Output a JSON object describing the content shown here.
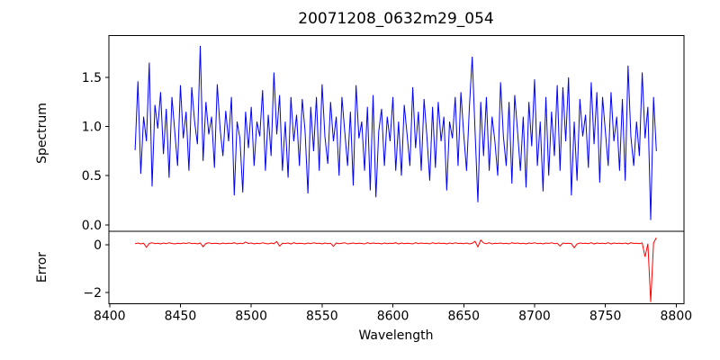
{
  "chart_data": {
    "type": "line",
    "title": "20071208_0632m29_054",
    "xlabel": "Wavelength",
    "xlim": [
      8399.5,
      8805.5
    ],
    "xticks": [
      8400,
      8450,
      8500,
      8550,
      8600,
      8650,
      8700,
      8750,
      8800
    ],
    "xtick_labels": [
      "8400",
      "8450",
      "8500",
      "8550",
      "8600",
      "8650",
      "8700",
      "8750",
      "8800"
    ],
    "x_start": 8418,
    "x_step": 2,
    "grid": false,
    "legend": "none",
    "subplots": [
      {
        "name": "spectrum",
        "ylabel": "Spectrum",
        "color": "#0000ff",
        "ylim": [
          -0.065,
          1.925
        ],
        "yticks": [
          0.0,
          0.5,
          1.0,
          1.5
        ],
        "ytick_labels": [
          "0.0",
          "0.5",
          "1.0",
          "1.5"
        ],
        "values": [
          0.76,
          1.46,
          0.52,
          1.1,
          0.85,
          1.65,
          0.39,
          1.22,
          0.98,
          1.35,
          0.72,
          1.18,
          0.48,
          1.3,
          0.95,
          0.6,
          1.42,
          0.88,
          1.15,
          0.55,
          1.4,
          1.05,
          0.82,
          1.82,
          0.65,
          1.25,
          0.92,
          1.1,
          0.58,
          1.43,
          0.98,
          0.7,
          1.16,
          0.85,
          1.3,
          0.3,
          1.05,
          0.88,
          0.33,
          1.15,
          0.78,
          1.2,
          0.6,
          1.05,
          0.9,
          1.37,
          0.55,
          1.12,
          0.7,
          1.55,
          0.92,
          1.32,
          0.55,
          1.05,
          0.48,
          1.3,
          0.85,
          1.12,
          0.6,
          1.28,
          0.95,
          0.32,
          1.2,
          0.75,
          1.3,
          0.55,
          1.43,
          0.9,
          0.62,
          1.25,
          0.85,
          1.1,
          0.5,
          1.3,
          0.95,
          0.6,
          1.15,
          0.4,
          1.42,
          0.88,
          1.05,
          0.55,
          1.2,
          0.35,
          1.32,
          0.28,
          0.95,
          1.18,
          0.6,
          1.1,
          0.85,
          1.3,
          0.55,
          1.05,
          0.5,
          1.22,
          0.92,
          0.6,
          1.4,
          0.78,
          1.15,
          0.55,
          1.28,
          0.9,
          0.45,
          1.2,
          0.58,
          1.25,
          0.85,
          1.1,
          0.35,
          1.05,
          0.88,
          1.3,
          0.6,
          1.35,
          0.92,
          0.55,
          1.2,
          1.71,
          0.95,
          0.23,
          1.25,
          0.7,
          1.3,
          0.55,
          1.1,
          0.85,
          0.5,
          1.45,
          0.9,
          0.6,
          1.25,
          0.42,
          1.32,
          0.95,
          0.55,
          1.1,
          0.38,
          1.25,
          0.8,
          1.48,
          0.6,
          1.05,
          0.34,
          1.3,
          0.5,
          1.15,
          0.7,
          1.42,
          0.55,
          1.4,
          0.85,
          1.5,
          0.3,
          1.05,
          0.45,
          1.28,
          0.9,
          1.12,
          0.58,
          1.45,
          0.82,
          1.35,
          0.43,
          1.3,
          0.95,
          0.6,
          1.35,
          0.85,
          1.1,
          0.55,
          1.28,
          0.45,
          1.62,
          0.9,
          0.6,
          1.05,
          0.7,
          1.55,
          0.88,
          1.2,
          0.05,
          1.3,
          0.75
        ]
      },
      {
        "name": "error",
        "ylabel": "Error",
        "color": "#ff0000",
        "ylim": [
          -2.47,
          0.57
        ],
        "yticks": [
          0,
          -2
        ],
        "ytick_labels": [
          "0",
          "−2"
        ],
        "values": [
          0.05,
          0.08,
          0.04,
          0.07,
          -0.1,
          0.06,
          0.09,
          0.05,
          0.07,
          0.04,
          0.08,
          0.05,
          0.09,
          0.06,
          0.04,
          0.07,
          0.05,
          0.08,
          0.06,
          0.09,
          0.05,
          0.07,
          0.04,
          0.08,
          -0.08,
          0.06,
          0.09,
          0.05,
          0.07,
          0.06,
          0.04,
          0.08,
          0.05,
          0.07,
          0.06,
          0.09,
          0.04,
          0.07,
          0.05,
          0.12,
          0.06,
          0.08,
          0.04,
          0.07,
          0.05,
          0.09,
          0.06,
          0.04,
          0.08,
          0.05,
          0.14,
          -0.05,
          0.07,
          0.06,
          0.08,
          0.04,
          0.09,
          0.05,
          0.07,
          0.06,
          0.04,
          0.08,
          0.05,
          0.09,
          0.06,
          0.07,
          0.04,
          0.08,
          0.05,
          0.07,
          -0.06,
          0.08,
          0.05,
          0.07,
          0.09,
          0.04,
          0.06,
          0.08,
          0.05,
          0.07,
          0.06,
          0.04,
          0.09,
          0.05,
          0.08,
          0.06,
          0.07,
          0.04,
          0.08,
          0.05,
          0.07,
          0.06,
          0.09,
          0.04,
          0.08,
          0.05,
          0.07,
          0.06,
          0.04,
          0.09,
          0.05,
          0.08,
          0.06,
          0.07,
          0.04,
          0.09,
          0.05,
          0.08,
          0.06,
          0.07,
          0.04,
          0.08,
          0.05,
          0.09,
          0.06,
          0.07,
          0.05,
          0.08,
          0.04,
          0.07,
          0.15,
          -0.08,
          0.2,
          0.08,
          0.05,
          0.09,
          0.04,
          0.07,
          0.06,
          0.08,
          0.05,
          0.07,
          0.04,
          0.09,
          0.06,
          0.08,
          0.05,
          0.07,
          0.04,
          0.08,
          0.06,
          0.09,
          0.05,
          0.07,
          0.04,
          0.08,
          0.06,
          0.09,
          0.05,
          0.07,
          -0.05,
          0.08,
          0.06,
          0.07,
          0.05,
          -0.12,
          0.04,
          0.08,
          0.06,
          0.07,
          0.05,
          0.09,
          0.04,
          0.08,
          0.06,
          0.07,
          0.05,
          0.09,
          0.04,
          0.08,
          0.06,
          0.07,
          0.05,
          0.08,
          0.04,
          0.09,
          0.06,
          0.07,
          0.05,
          0.08,
          -0.5,
          0.05,
          -2.4,
          0.08,
          0.3
        ]
      }
    ],
    "colors": {
      "spine": "#000000",
      "background": "#ffffff"
    }
  }
}
